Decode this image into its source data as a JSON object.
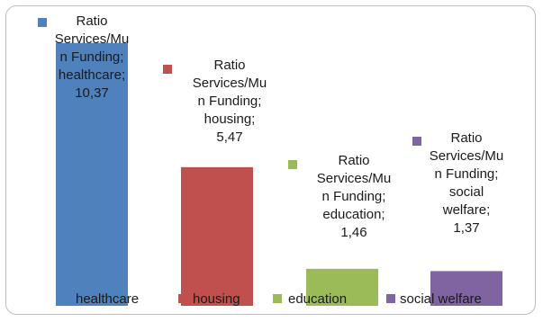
{
  "chart_data": {
    "type": "bar",
    "title": "",
    "xlabel": "",
    "ylabel": "",
    "categories": [
      "healthcare",
      "housing",
      "education",
      "social welfare"
    ],
    "series": [
      {
        "name": "Ratio Services/Mun Funding",
        "values": [
          10.37,
          5.47,
          1.46,
          1.37
        ]
      }
    ],
    "ylim": [
      0,
      11
    ],
    "grid": false,
    "legend": "bottom",
    "colors": [
      "#4f81bd",
      "#c0504d",
      "#9bbb59",
      "#8064a2"
    ],
    "data_labels": [
      [
        "Ratio",
        "Services/Mu",
        "n Funding;",
        "healthcare;",
        "10,37"
      ],
      [
        "Ratio",
        "Services/Mu",
        "n Funding;",
        "housing;",
        "5,47"
      ],
      [
        "Ratio",
        "Services/Mu",
        "n Funding;",
        "education;",
        "1,46"
      ],
      [
        "Ratio",
        "Services/Mu",
        "n Funding;",
        "social",
        "welfare;",
        "1,37"
      ]
    ]
  }
}
